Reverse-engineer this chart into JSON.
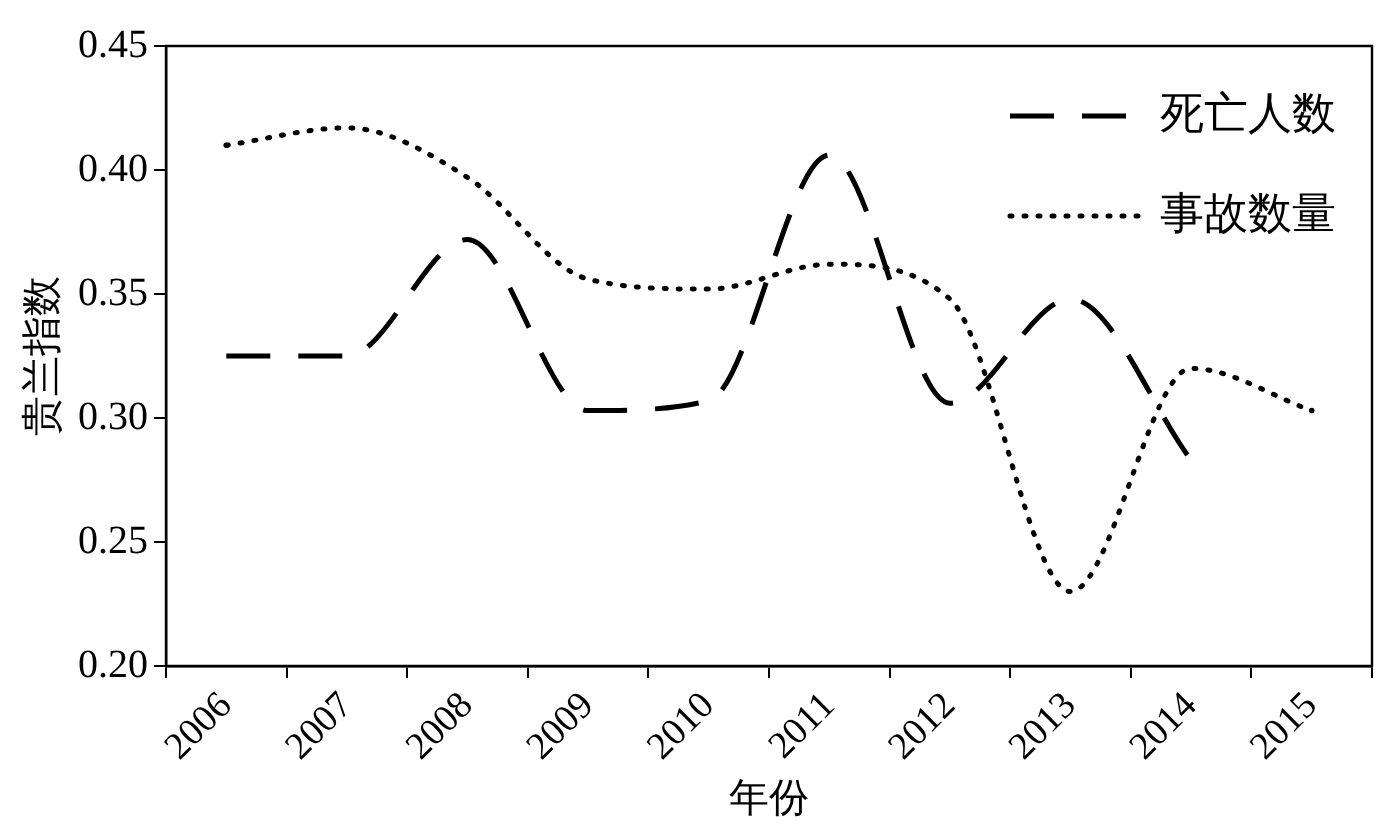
{
  "chart_data": {
    "type": "line",
    "xlabel": "年份",
    "ylabel": "贵兰指数",
    "categories": [
      "2006",
      "2007",
      "2008",
      "2009",
      "2010",
      "2011",
      "2012",
      "2013",
      "2014",
      "2015"
    ],
    "series": [
      {
        "name": "死亡人数",
        "color": "#000000",
        "line_style": "dashed",
        "values": [
          0.325,
          0.325,
          0.372,
          0.303,
          0.307,
          0.406,
          0.306,
          0.348,
          0.283,
          null
        ]
      },
      {
        "name": "事故数量",
        "color": "#000000",
        "line_style": "dotted",
        "values": [
          0.41,
          0.417,
          0.397,
          0.356,
          0.352,
          0.362,
          0.348,
          0.23,
          0.32,
          0.303
        ]
      }
    ],
    "ylim": [
      0.2,
      0.45
    ],
    "yticks": [
      {
        "value": 0.2,
        "label": "0.20"
      },
      0.25,
      {
        "value": 0.3,
        "label": "0.30"
      },
      0.35,
      {
        "value": 0.4,
        "label": "0.40"
      },
      0.45
    ],
    "grid": false,
    "legend": "top right",
    "marker": "none"
  }
}
